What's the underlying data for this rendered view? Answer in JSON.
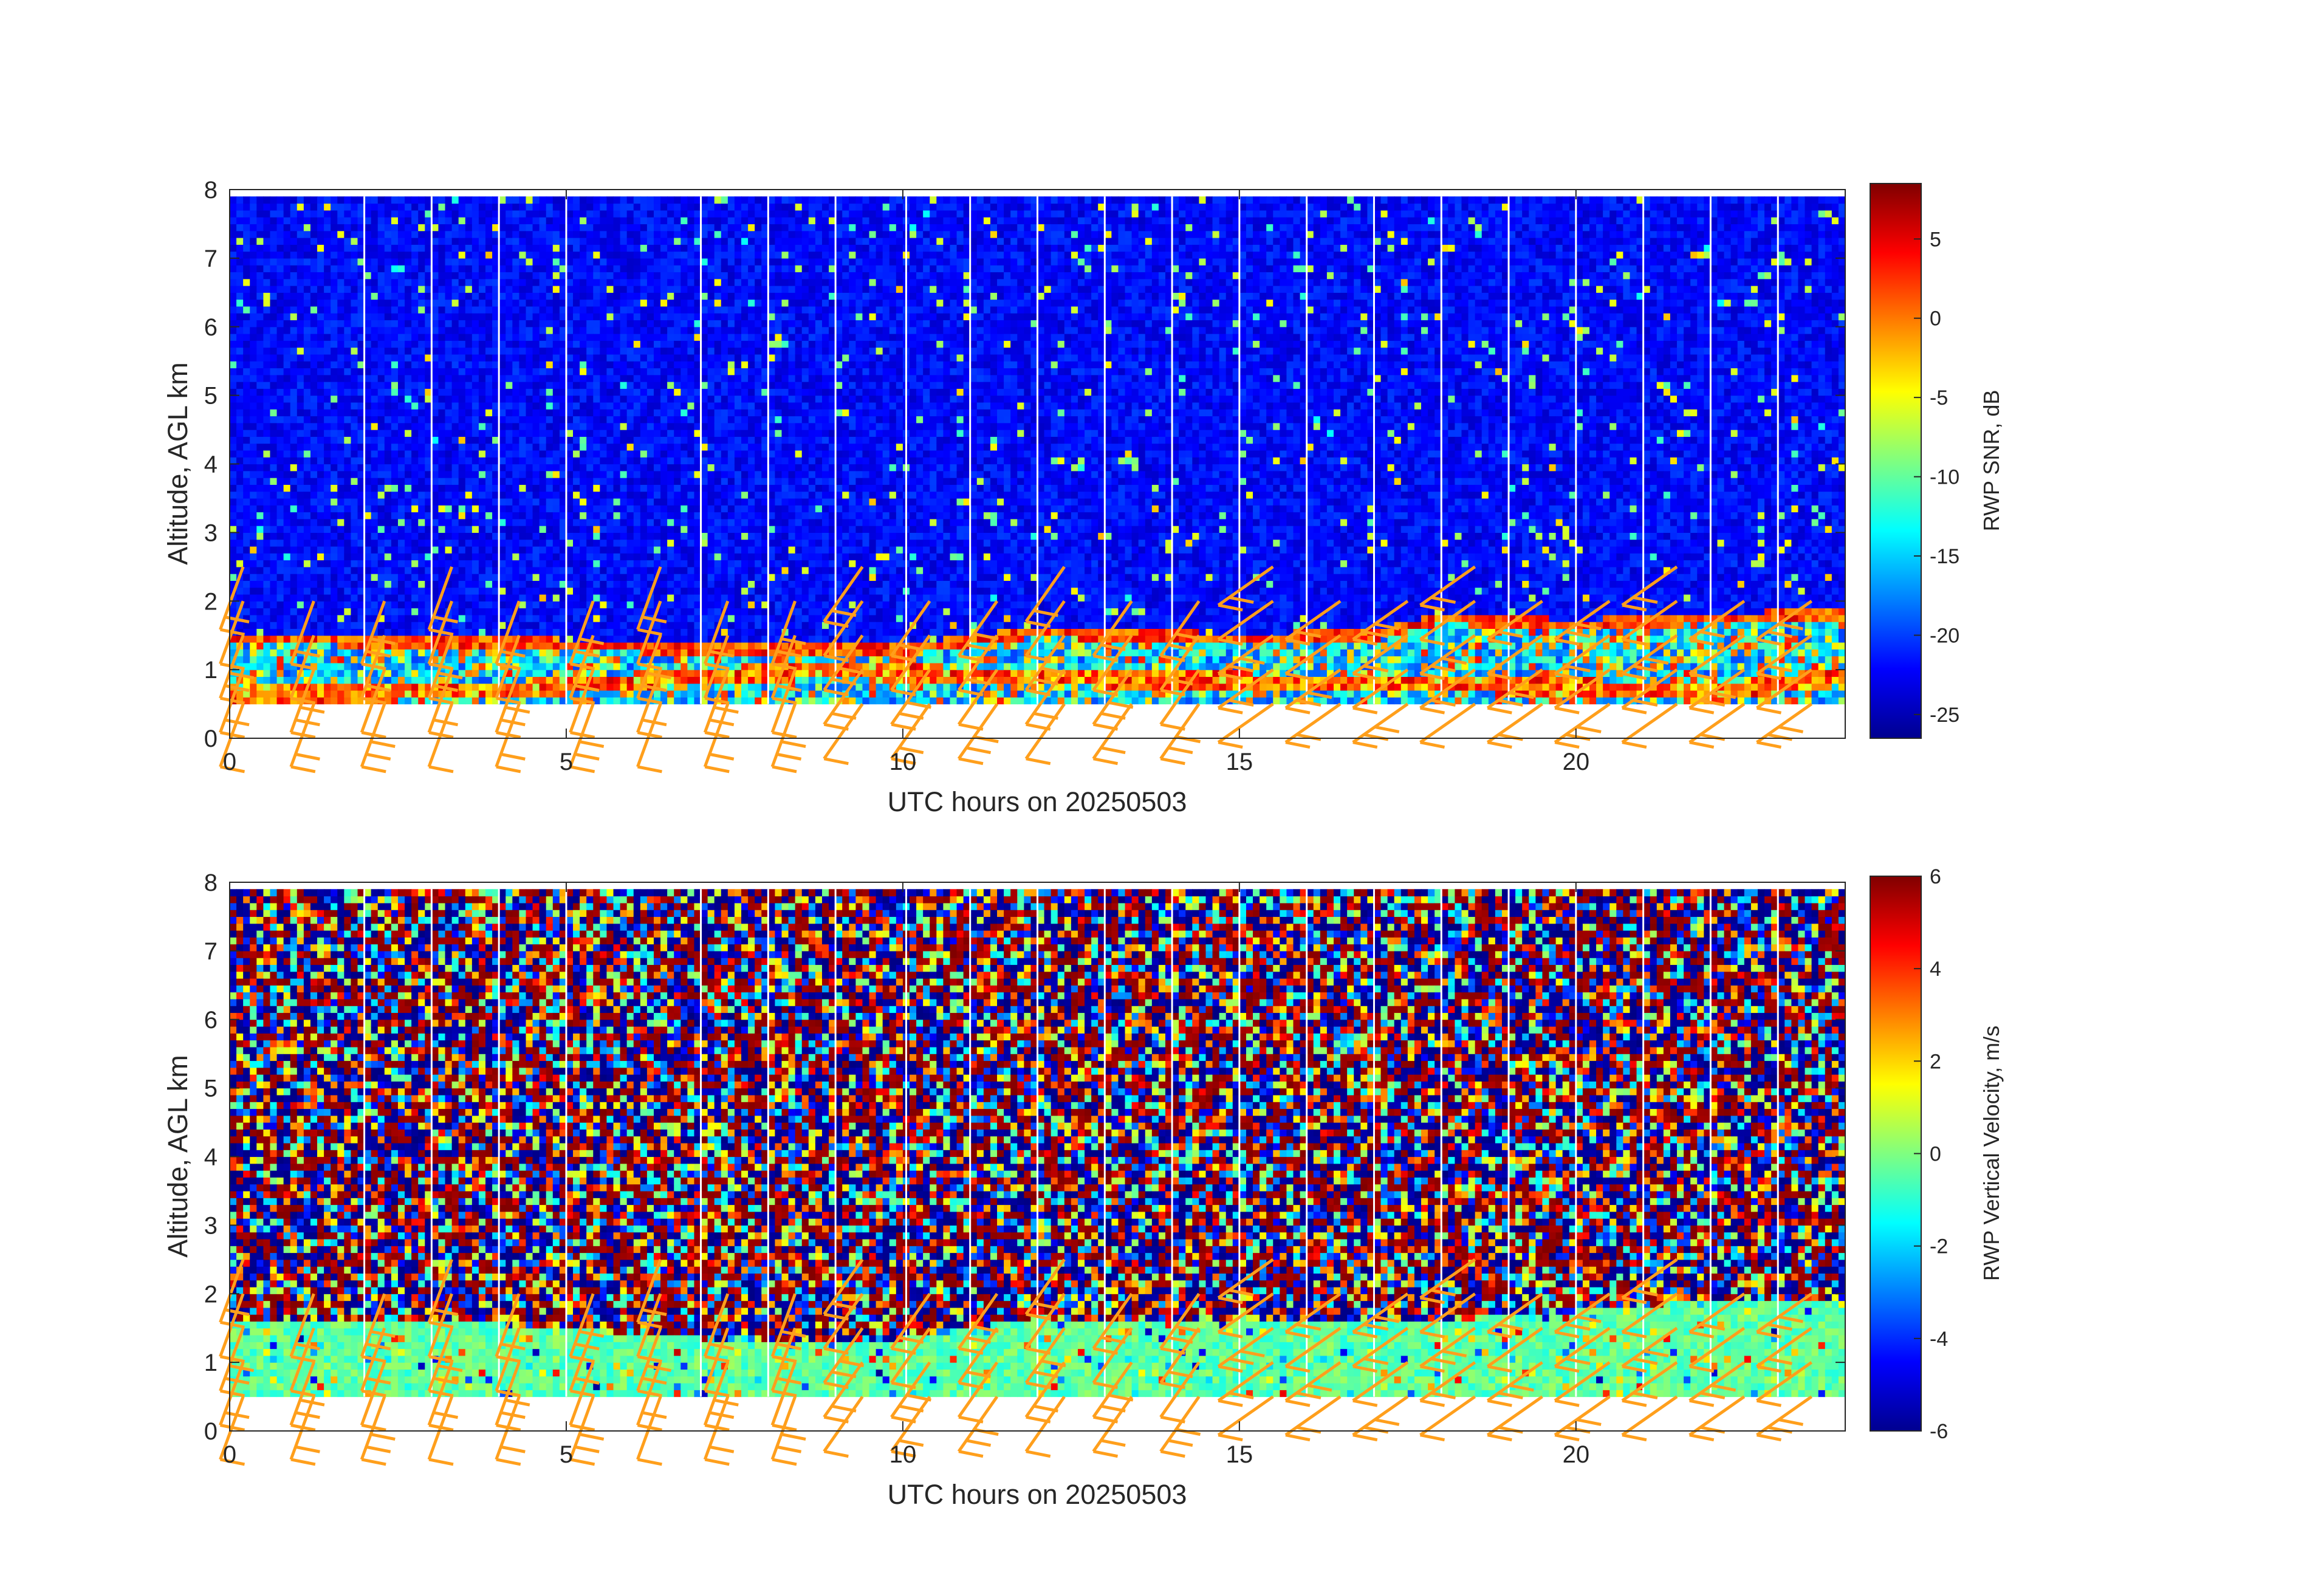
{
  "chart_data": [
    {
      "type": "heatmap",
      "title": "",
      "xlabel": "UTC hours on 20250503",
      "ylabel": "Altitude, AGL km",
      "xlim": [
        0,
        24
      ],
      "ylim": [
        0,
        8
      ],
      "x_ticks": [
        0,
        5,
        10,
        15,
        20
      ],
      "y_ticks": [
        0,
        1,
        2,
        3,
        4,
        5,
        6,
        7,
        8
      ],
      "data_altitude_range_km": [
        0.5,
        7.9
      ],
      "gap_lines_hours": [
        2,
        3,
        4,
        5,
        7,
        8,
        9,
        10.05,
        11,
        12,
        13,
        14,
        15,
        16,
        17,
        18,
        19,
        20,
        21,
        22,
        23
      ],
      "colorbar": {
        "label": "RWP SNR, dB",
        "range": [
          -26.5,
          8.5
        ],
        "ticks": [
          5,
          0,
          -5,
          -10,
          -15,
          -20,
          -25
        ],
        "colormap": "jet"
      },
      "features": [
        {
          "name": "elevated SNR layer",
          "x": [
            0,
            4,
            7,
            10,
            12,
            15,
            17,
            18,
            20,
            22,
            24
          ],
          "y": [
            1.45,
            1.4,
            1.3,
            1.3,
            1.55,
            1.45,
            1.5,
            1.75,
            1.65,
            1.75,
            1.8
          ]
        },
        {
          "name": "lower SNR layer",
          "x": [
            0,
            4,
            7,
            9,
            11,
            14,
            17,
            20,
            22,
            24
          ],
          "y": [
            0.62,
            0.7,
            0.9,
            1.0,
            0.9,
            0.85,
            0.8,
            0.75,
            0.65,
            0.9
          ]
        }
      ],
      "wind_barbs": {
        "color": "#ff9f1c",
        "times_hours": [
          0.2,
          1.25,
          2.3,
          3.3,
          4.3,
          5.4,
          6.4,
          7.4,
          8.4,
          9.4,
          10.4,
          11.4,
          12.4,
          13.4,
          14.4,
          15.5,
          16.5,
          17.5,
          18.5,
          19.5,
          20.5,
          21.5,
          22.5,
          23.5
        ],
        "altitudes_km": [
          0.5,
          1.0,
          1.5,
          2.0,
          2.5
        ]
      }
    },
    {
      "type": "heatmap",
      "title": "",
      "xlabel": "UTC hours on 20250503",
      "ylabel": "Altitude, AGL km",
      "xlim": [
        0,
        24
      ],
      "ylim": [
        0,
        8
      ],
      "x_ticks": [
        0,
        5,
        10,
        15,
        20
      ],
      "y_ticks": [
        0,
        1,
        2,
        3,
        4,
        5,
        6,
        7,
        8
      ],
      "data_altitude_range_km": [
        0.5,
        7.9
      ],
      "gap_lines_hours": [
        2,
        3,
        4,
        5,
        7,
        8,
        9,
        10.05,
        11,
        12,
        13,
        14,
        15,
        16,
        17,
        18,
        19,
        20,
        21,
        22,
        23
      ],
      "colorbar": {
        "label": "RWP Vertical Velocity, m/s",
        "range": [
          -6,
          6
        ],
        "ticks": [
          6,
          4,
          2,
          0,
          -2,
          -4,
          -6
        ],
        "colormap": "jet"
      },
      "features": [
        {
          "name": "near-zero velocity region top",
          "x": [
            0,
            4,
            7,
            10,
            12,
            15,
            17,
            20,
            22,
            24
          ],
          "y": [
            1.6,
            1.55,
            1.35,
            1.35,
            1.65,
            1.6,
            1.55,
            1.75,
            1.9,
            1.9
          ]
        }
      ],
      "wind_barbs": {
        "color": "#ff9f1c",
        "times_hours": [
          0.2,
          1.25,
          2.3,
          3.3,
          4.3,
          5.4,
          6.4,
          7.4,
          8.4,
          9.4,
          10.4,
          11.4,
          12.4,
          13.4,
          14.4,
          15.5,
          16.5,
          17.5,
          18.5,
          19.5,
          20.5,
          21.5,
          22.5,
          23.5
        ],
        "altitudes_km": [
          0.5,
          1.0,
          1.5,
          2.0,
          2.5
        ]
      }
    }
  ]
}
